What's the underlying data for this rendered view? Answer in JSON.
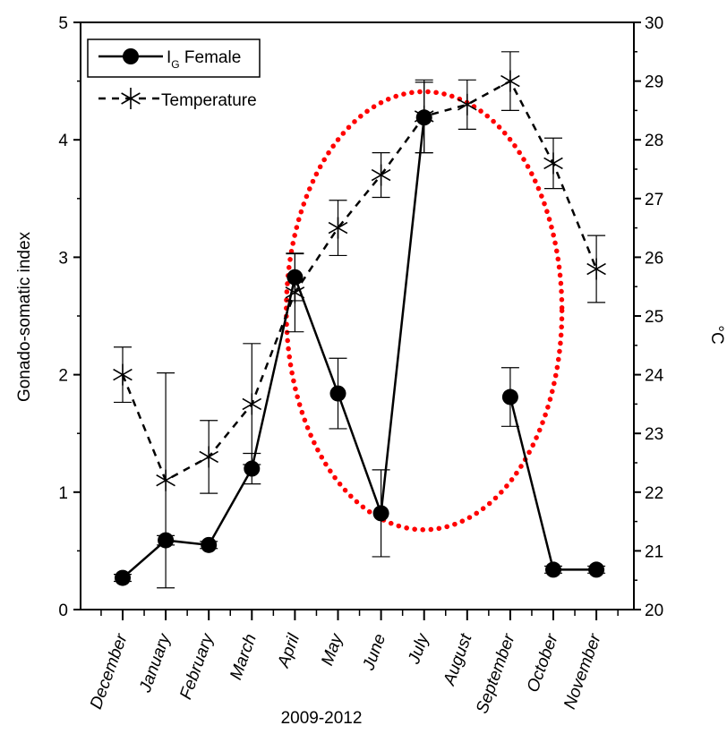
{
  "chart_data": {
    "type": "line",
    "categories": [
      "December",
      "January",
      "February",
      "March",
      "April",
      "May",
      "June",
      "July",
      "August",
      "September",
      "October",
      "November"
    ],
    "xlabel": "2009-2012",
    "ylabel_left": "Gonado-somatic index",
    "ylabel_right": "°C",
    "ylim_left": [
      0,
      5
    ],
    "ylim_right": [
      20,
      30
    ],
    "yticks_left": [
      "0",
      "1",
      "2",
      "3",
      "4",
      "5"
    ],
    "yticks_right": [
      "20",
      "21",
      "22",
      "23",
      "24",
      "25",
      "26",
      "27",
      "28",
      "29",
      "30"
    ],
    "grid": false,
    "legend_position": "top-left",
    "series": [
      {
        "name": "I",
        "name_sub": "G",
        "name_suffix": " Female",
        "axis": "left",
        "marker": "filled-circle",
        "line_style": "solid",
        "color": "#000000",
        "values": [
          0.27,
          0.59,
          0.55,
          1.2,
          2.83,
          1.84,
          0.82,
          4.19,
          null,
          1.81,
          0.34,
          0.34
        ],
        "error": [
          0.03,
          0.04,
          0.03,
          0.13,
          0.2,
          0.3,
          0.37,
          0.3,
          null,
          0.25,
          0.03,
          0.03
        ],
        "line_segments": [
          [
            0,
            7
          ],
          [
            9,
            11
          ]
        ]
      },
      {
        "name": "Temperature",
        "axis": "right",
        "marker": "asterisk",
        "line_style": "dashed",
        "color": "#000000",
        "values": [
          24.0,
          22.2,
          22.6,
          23.5,
          25.4,
          26.5,
          27.4,
          28.4,
          28.6,
          29.0,
          27.6,
          25.8
        ],
        "error": [
          0.47,
          1.83,
          0.62,
          1.03,
          0.67,
          0.47,
          0.38,
          0.62,
          0.42,
          0.5,
          0.43,
          0.57
        ],
        "line_segments": [
          [
            0,
            11
          ]
        ]
      }
    ],
    "annotation": {
      "shape": "dotted-ellipse",
      "color": "#ff0000",
      "x_range": [
        3.8,
        10.2
      ],
      "y_range_left": [
        0.68,
        4.41
      ]
    }
  }
}
